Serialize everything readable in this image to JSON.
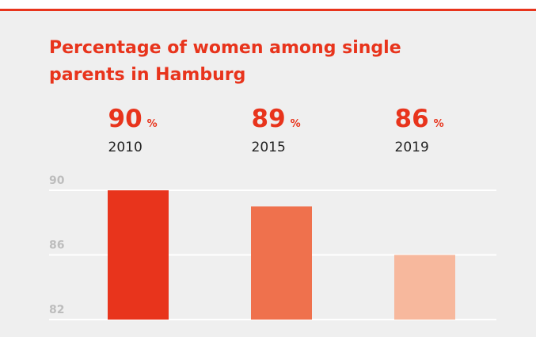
{
  "chart_data": {
    "type": "bar",
    "title": "Percentage of women among single parents in Hamburg",
    "categories": [
      "2010",
      "2015",
      "2019"
    ],
    "values": [
      90,
      89,
      86
    ],
    "unit": "%",
    "colors": [
      "#e8341c",
      "#ef714d",
      "#f7b89d"
    ],
    "ylim": [
      82,
      90
    ],
    "yticks": [
      82,
      86,
      90
    ],
    "grid": true
  }
}
